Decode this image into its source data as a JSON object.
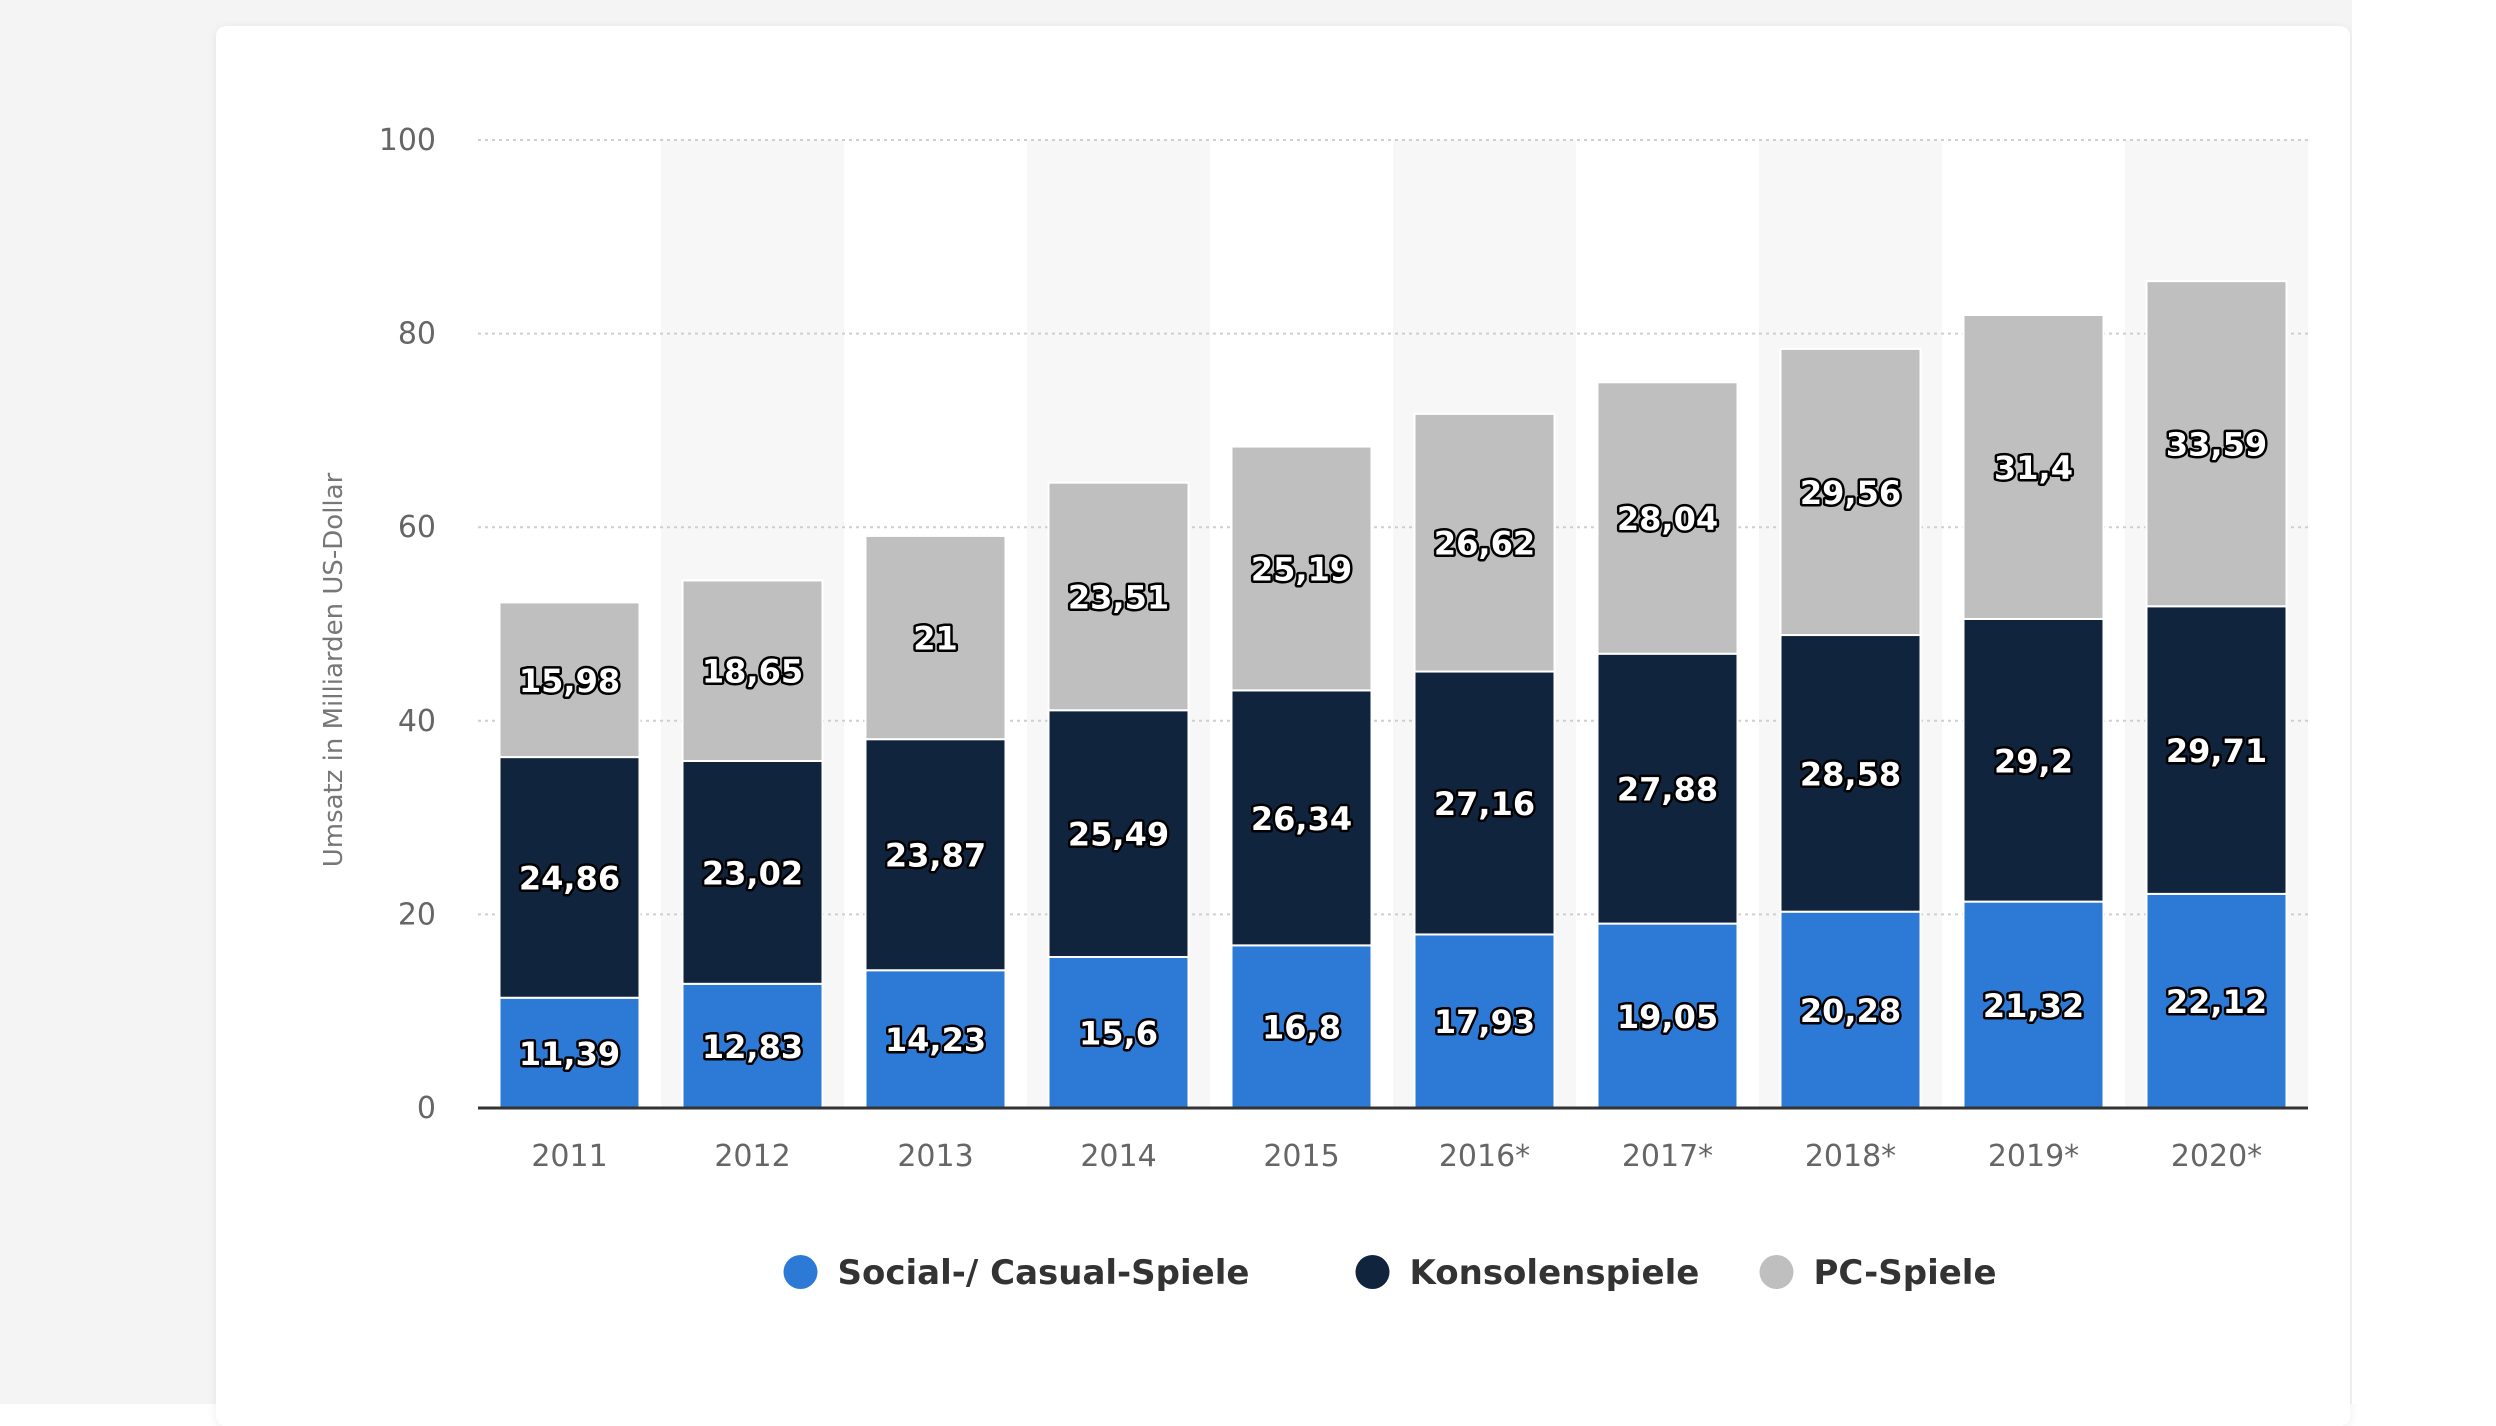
{
  "chart_data": {
    "type": "bar",
    "stacked": true,
    "title": "",
    "xlabel": "",
    "ylabel": "Umsatz in Milliarden US-Dollar",
    "ylim": [
      0,
      100
    ],
    "yticks": [
      "0",
      "20",
      "40",
      "60",
      "80",
      "100"
    ],
    "grid": true,
    "legend_position": "bottom",
    "categories": [
      "2011",
      "2012",
      "2013",
      "2014",
      "2015",
      "2016*",
      "2017*",
      "2018*",
      "2019*",
      "2020*"
    ],
    "series": [
      {
        "name": "Social-/ Casual-Spiele",
        "color": "#2d7ad6",
        "values": [
          11.39,
          12.83,
          14.23,
          15.6,
          16.8,
          17.93,
          19.05,
          20.28,
          21.32,
          22.12
        ],
        "labels": [
          "11,39",
          "12,83",
          "14,23",
          "15,6",
          "16,8",
          "17,93",
          "19,05",
          "20,28",
          "21,32",
          "22,12"
        ]
      },
      {
        "name": "Konsolenspiele",
        "color": "#11243e",
        "values": [
          24.86,
          23.02,
          23.87,
          25.49,
          26.34,
          27.16,
          27.88,
          28.58,
          29.2,
          29.71
        ],
        "labels": [
          "24,86",
          "23,02",
          "23,87",
          "25,49",
          "26,34",
          "27,16",
          "27,88",
          "28,58",
          "29,2",
          "29,71"
        ]
      },
      {
        "name": "PC-Spiele",
        "color": "#bfbfbf",
        "values": [
          15.98,
          18.65,
          21,
          23.51,
          25.19,
          26.62,
          28.04,
          29.56,
          31.4,
          33.59
        ],
        "labels": [
          "15,98",
          "18,65",
          "21",
          "23,51",
          "25,19",
          "26,62",
          "28,04",
          "29,56",
          "31,4",
          "33,59"
        ]
      }
    ]
  }
}
